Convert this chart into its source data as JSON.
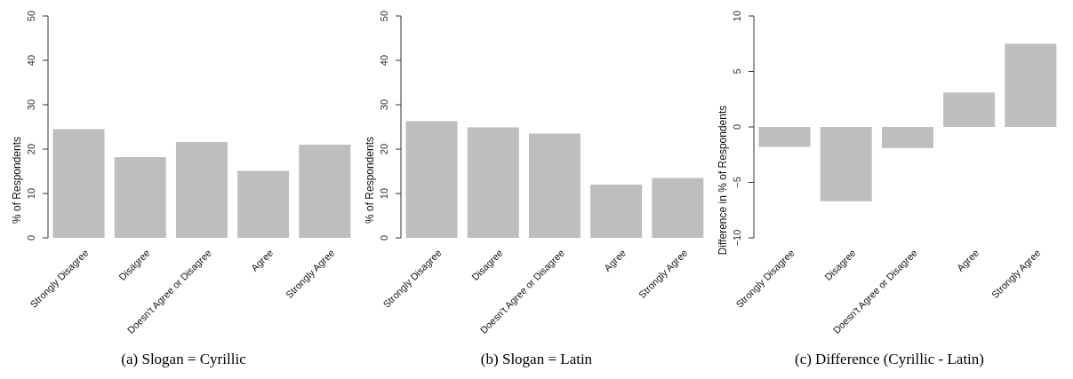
{
  "chart_data": [
    {
      "type": "bar",
      "title": "(a) Slogan = Cyrillic",
      "ylabel": "% of Respondents",
      "categories": [
        "Strongly Disagree",
        "Disagree",
        "Doesn't Agree or Disagree",
        "Agree",
        "Strongly Agree"
      ],
      "values": [
        24.5,
        18.2,
        21.6,
        15.1,
        21.0
      ],
      "color": "#bebebe",
      "ylim": [
        0,
        50
      ],
      "yticks": [
        0,
        10,
        20,
        30,
        40,
        50
      ],
      "grid": false
    },
    {
      "type": "bar",
      "title": "(b) Slogan = Latin",
      "ylabel": "% of Respondents",
      "categories": [
        "Strongly Disagree",
        "Disagree",
        "Doesn't Agree or Disagree",
        "Agree",
        "Strongly Agree"
      ],
      "values": [
        26.3,
        24.9,
        23.5,
        12.0,
        13.5
      ],
      "color": "#bebebe",
      "ylim": [
        0,
        50
      ],
      "yticks": [
        0,
        10,
        20,
        30,
        40,
        50
      ],
      "grid": false
    },
    {
      "type": "bar",
      "title": "(c) Difference (Cyrillic - Latin)",
      "ylabel": "Difference in % of Respondents",
      "categories": [
        "Strongly Disagree",
        "Disagree",
        "Doesn't Agree or Disagree",
        "Agree",
        "Strongly Agree"
      ],
      "values": [
        -1.8,
        -6.7,
        -1.9,
        3.1,
        7.5
      ],
      "color": "#bebebe",
      "ylim": [
        -10,
        10
      ],
      "yticks": [
        {
          "value": -10,
          "label": "−10"
        },
        {
          "value": -5,
          "label": "−5"
        },
        0,
        5,
        10
      ],
      "grid": false
    }
  ]
}
